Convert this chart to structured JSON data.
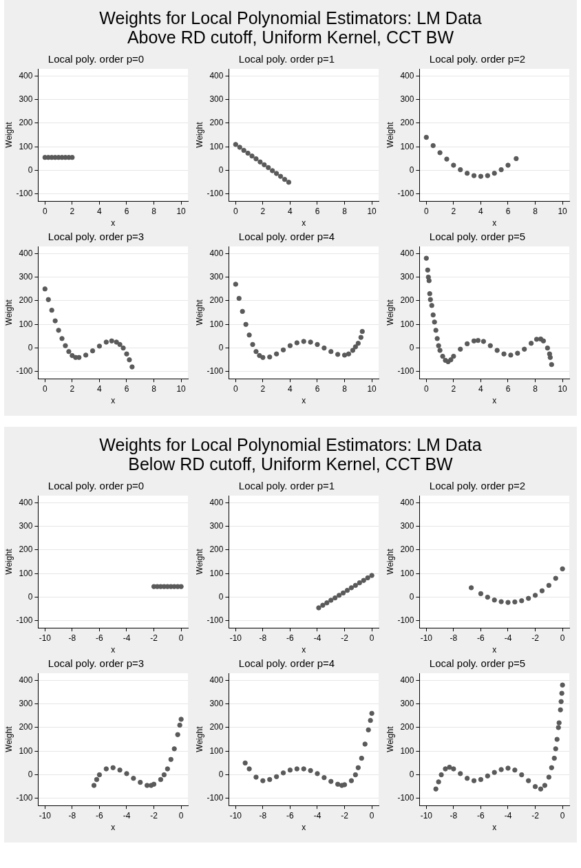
{
  "chart_data": [
    {
      "type": "other",
      "title": "Weights for Local Polynomial Estimators: LM Data",
      "subtitle": "Above RD cutoff, Uniform Kernel, CCT BW"
    },
    {
      "type": "scatter",
      "title": "Local poly. order p=0",
      "xlabel": "x",
      "ylabel": "Weight",
      "color": "#5a5a5a",
      "marker": "circle",
      "grid": "y",
      "xlim": [
        -0.5,
        10.5
      ],
      "xticks": [
        0,
        2,
        4,
        6,
        8,
        10
      ],
      "ylim": [
        -130,
        430
      ],
      "yticks": [
        -100,
        0,
        100,
        200,
        300,
        400
      ],
      "x": [
        0,
        0.25,
        0.5,
        0.75,
        1,
        1.25,
        1.5,
        1.75,
        2
      ],
      "values": [
        55,
        55,
        55,
        55,
        55,
        55,
        55,
        55,
        55
      ]
    },
    {
      "type": "scatter",
      "title": "Local poly. order p=1",
      "xlabel": "x",
      "ylabel": "Weight",
      "color": "#5a5a5a",
      "marker": "circle",
      "grid": "y",
      "xlim": [
        -0.5,
        10.5
      ],
      "xticks": [
        0,
        2,
        4,
        6,
        8,
        10
      ],
      "ylim": [
        -130,
        430
      ],
      "yticks": [
        -100,
        0,
        100,
        200,
        300,
        400
      ],
      "x": [
        0,
        0.3,
        0.6,
        0.9,
        1.2,
        1.5,
        1.8,
        2.1,
        2.4,
        2.7,
        3,
        3.3,
        3.6,
        3.9
      ],
      "values": [
        110,
        98,
        85,
        73,
        61,
        49,
        36,
        24,
        12,
        -1,
        -13,
        -25,
        -38,
        -50
      ]
    },
    {
      "type": "scatter",
      "title": "Local poly. order p=2",
      "xlabel": "x",
      "ylabel": "Weight",
      "color": "#5a5a5a",
      "marker": "circle",
      "grid": "y",
      "xlim": [
        -0.5,
        10.5
      ],
      "xticks": [
        0,
        2,
        4,
        6,
        8,
        10
      ],
      "ylim": [
        -130,
        430
      ],
      "yticks": [
        -100,
        0,
        100,
        200,
        300,
        400
      ],
      "x": [
        0,
        0.5,
        1,
        1.5,
        2,
        2.5,
        3,
        3.5,
        4,
        4.5,
        5,
        5.5,
        6,
        6.6
      ],
      "values": [
        140,
        105,
        75,
        48,
        22,
        3,
        -12,
        -22,
        -25,
        -22,
        -12,
        3,
        22,
        50
      ]
    },
    {
      "type": "scatter",
      "title": "Local poly. order p=3",
      "xlabel": "x",
      "ylabel": "Weight",
      "color": "#5a5a5a",
      "marker": "circle",
      "grid": "y",
      "xlim": [
        -0.5,
        10.5
      ],
      "xticks": [
        0,
        2,
        4,
        6,
        8,
        10
      ],
      "ylim": [
        -130,
        430
      ],
      "yticks": [
        -100,
        0,
        100,
        200,
        300,
        400
      ],
      "x": [
        0,
        0.25,
        0.5,
        0.75,
        1,
        1.25,
        1.5,
        1.75,
        2,
        2.25,
        2.5,
        3,
        3.5,
        4,
        4.5,
        4.9,
        5.25,
        5.5,
        5.75,
        6,
        6.2,
        6.4
      ],
      "values": [
        250,
        205,
        160,
        115,
        75,
        40,
        10,
        -15,
        -32,
        -40,
        -40,
        -30,
        -12,
        8,
        25,
        30,
        25,
        15,
        0,
        -25,
        -50,
        -80
      ]
    },
    {
      "type": "scatter",
      "title": "Local poly. order p=4",
      "xlabel": "x",
      "ylabel": "Weight",
      "color": "#5a5a5a",
      "marker": "circle",
      "grid": "y",
      "xlim": [
        -0.5,
        10.5
      ],
      "xticks": [
        0,
        2,
        4,
        6,
        8,
        10
      ],
      "ylim": [
        -130,
        430
      ],
      "yticks": [
        -100,
        0,
        100,
        200,
        300,
        400
      ],
      "x": [
        0,
        0.25,
        0.5,
        0.75,
        1,
        1.25,
        1.5,
        1.75,
        2,
        2.5,
        3,
        3.5,
        4,
        4.5,
        5,
        5.5,
        6,
        6.5,
        7,
        7.5,
        8,
        8.3,
        8.6,
        8.8,
        9,
        9.2,
        9.3
      ],
      "values": [
        270,
        210,
        155,
        100,
        55,
        15,
        -15,
        -32,
        -40,
        -38,
        -25,
        -8,
        10,
        22,
        28,
        25,
        15,
        0,
        -15,
        -27,
        -30,
        -25,
        -10,
        5,
        20,
        45,
        70
      ]
    },
    {
      "type": "scatter",
      "title": "Local poly. order p=5",
      "xlabel": "x",
      "ylabel": "Weight",
      "color": "#5a5a5a",
      "marker": "circle",
      "grid": "y",
      "xlim": [
        -0.5,
        10.5
      ],
      "xticks": [
        0,
        2,
        4,
        6,
        8,
        10
      ],
      "ylim": [
        -130,
        430
      ],
      "yticks": [
        -100,
        0,
        100,
        200,
        300,
        400
      ],
      "x": [
        0,
        0.1,
        0.15,
        0.2,
        0.25,
        0.3,
        0.4,
        0.5,
        0.6,
        0.7,
        0.8,
        0.9,
        1,
        1.2,
        1.4,
        1.6,
        1.8,
        2,
        2.5,
        3,
        3.5,
        3.8,
        4.2,
        4.7,
        5.2,
        5.7,
        6.2,
        6.7,
        7.2,
        7.7,
        8.1,
        8.4,
        8.6,
        8.9,
        9.05,
        9.1,
        9.2
      ],
      "values": [
        380,
        330,
        300,
        285,
        230,
        205,
        180,
        140,
        110,
        75,
        40,
        10,
        -10,
        -35,
        -52,
        -58,
        -50,
        -35,
        -5,
        18,
        30,
        32,
        28,
        10,
        -10,
        -25,
        -30,
        -22,
        -5,
        20,
        37,
        38,
        30,
        0,
        -25,
        -40,
        -70
      ]
    },
    {
      "type": "other",
      "title": "Weights for Local Polynomial Estimators: LM Data",
      "subtitle": "Below RD cutoff, Uniform Kernel, CCT BW"
    },
    {
      "type": "scatter",
      "title": "Local poly. order p=0",
      "xlabel": "x",
      "ylabel": "Weight",
      "color": "#5a5a5a",
      "marker": "circle",
      "grid": "y",
      "xlim": [
        -10.5,
        0.5
      ],
      "xticks": [
        -10,
        -8,
        -6,
        -4,
        -2,
        0
      ],
      "ylim": [
        -130,
        430
      ],
      "yticks": [
        -100,
        0,
        100,
        200,
        300,
        400
      ],
      "x": [
        -2,
        -1.75,
        -1.5,
        -1.25,
        -1,
        -0.75,
        -0.5,
        -0.25,
        0
      ],
      "values": [
        45,
        45,
        45,
        45,
        45,
        45,
        45,
        45,
        45
      ]
    },
    {
      "type": "scatter",
      "title": "Local poly. order p=1",
      "xlabel": "x",
      "ylabel": "Weight",
      "color": "#5a5a5a",
      "marker": "circle",
      "grid": "y",
      "xlim": [
        -10.5,
        0.5
      ],
      "xticks": [
        -10,
        -8,
        -6,
        -4,
        -2,
        0
      ],
      "ylim": [
        -130,
        430
      ],
      "yticks": [
        -100,
        0,
        100,
        200,
        300,
        400
      ],
      "x": [
        -3.9,
        -3.6,
        -3.3,
        -3,
        -2.7,
        -2.4,
        -2.1,
        -1.8,
        -1.5,
        -1.2,
        -0.9,
        -0.6,
        -0.3,
        0
      ],
      "values": [
        -45,
        -34,
        -24,
        -13,
        -3,
        8,
        18,
        29,
        40,
        50,
        61,
        71,
        82,
        92
      ]
    },
    {
      "type": "scatter",
      "title": "Local poly. order p=2",
      "xlabel": "x",
      "ylabel": "Weight",
      "color": "#5a5a5a",
      "marker": "circle",
      "grid": "y",
      "xlim": [
        -10.5,
        0.5
      ],
      "xticks": [
        -10,
        -8,
        -6,
        -4,
        -2,
        0
      ],
      "ylim": [
        -130,
        430
      ],
      "yticks": [
        -100,
        0,
        100,
        200,
        300,
        400
      ],
      "x": [
        -6.7,
        -6,
        -5.5,
        -5,
        -4.5,
        -4,
        -3.5,
        -3,
        -2.5,
        -2,
        -1.5,
        -1,
        -0.5,
        0
      ],
      "values": [
        40,
        15,
        0,
        -12,
        -19,
        -22,
        -20,
        -15,
        -5,
        8,
        27,
        50,
        80,
        120
      ]
    },
    {
      "type": "scatter",
      "title": "Local poly. order p=3",
      "xlabel": "x",
      "ylabel": "Weight",
      "color": "#5a5a5a",
      "marker": "circle",
      "grid": "y",
      "xlim": [
        -10.5,
        0.5
      ],
      "xticks": [
        -10,
        -8,
        -6,
        -4,
        -2,
        0
      ],
      "ylim": [
        -130,
        430
      ],
      "yticks": [
        -100,
        0,
        100,
        200,
        300,
        400
      ],
      "x": [
        -6.4,
        -6.2,
        -6,
        -5.5,
        -5,
        -4.5,
        -4,
        -3.5,
        -3,
        -2.5,
        -2.2,
        -2,
        -1.5,
        -1.25,
        -1,
        -0.75,
        -0.5,
        -0.25,
        -0.1,
        0
      ],
      "values": [
        -45,
        -20,
        0,
        25,
        30,
        20,
        5,
        -15,
        -32,
        -45,
        -45,
        -40,
        -20,
        0,
        25,
        65,
        110,
        170,
        210,
        235
      ]
    },
    {
      "type": "scatter",
      "title": "Local poly. order p=4",
      "xlabel": "x",
      "ylabel": "Weight",
      "color": "#5a5a5a",
      "marker": "circle",
      "grid": "y",
      "xlim": [
        -10.5,
        0.5
      ],
      "xticks": [
        -10,
        -8,
        -6,
        -4,
        -2,
        0
      ],
      "ylim": [
        -130,
        430
      ],
      "yticks": [
        -100,
        0,
        100,
        200,
        300,
        400
      ],
      "x": [
        -9.3,
        -9,
        -8.5,
        -8,
        -7.5,
        -7,
        -6.5,
        -6,
        -5.5,
        -5,
        -4.5,
        -4,
        -3.5,
        -3,
        -2.5,
        -2.2,
        -2,
        -1.5,
        -1.2,
        -1,
        -0.75,
        -0.5,
        -0.25,
        -0.1,
        0
      ],
      "values": [
        50,
        25,
        -10,
        -25,
        -20,
        -8,
        8,
        20,
        25,
        25,
        18,
        5,
        -12,
        -28,
        -40,
        -45,
        -42,
        -25,
        0,
        30,
        70,
        130,
        190,
        230,
        260
      ]
    },
    {
      "type": "scatter",
      "title": "Local poly. order p=5",
      "xlabel": "x",
      "ylabel": "Weight",
      "color": "#5a5a5a",
      "marker": "circle",
      "grid": "y",
      "xlim": [
        -10.5,
        0.5
      ],
      "xticks": [
        -10,
        -8,
        -6,
        -4,
        -2,
        0
      ],
      "ylim": [
        -130,
        430
      ],
      "yticks": [
        -100,
        0,
        100,
        200,
        300,
        400
      ],
      "x": [
        -9.3,
        -9.1,
        -8.9,
        -8.6,
        -8.3,
        -8,
        -7.5,
        -7,
        -6.5,
        -6,
        -5.5,
        -5,
        -4.5,
        -4,
        -3.5,
        -3,
        -2.5,
        -2,
        -1.6,
        -1.3,
        -1,
        -0.8,
        -0.6,
        -0.5,
        -0.4,
        -0.3,
        -0.25,
        -0.15,
        -0.1,
        -0.05,
        0
      ],
      "values": [
        -60,
        -30,
        0,
        25,
        32,
        25,
        5,
        -15,
        -25,
        -20,
        -5,
        10,
        22,
        28,
        20,
        0,
        -25,
        -50,
        -60,
        -45,
        -10,
        30,
        70,
        110,
        150,
        200,
        220,
        275,
        310,
        345,
        380
      ]
    }
  ]
}
